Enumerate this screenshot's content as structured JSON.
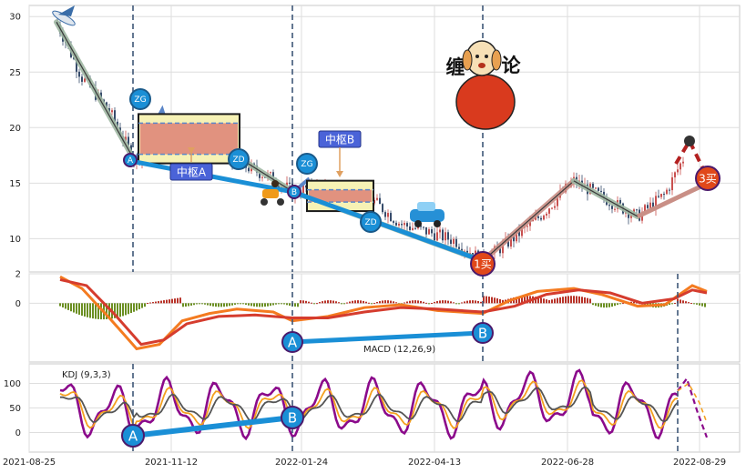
{
  "chart_data": [
    {
      "type": "candlestick",
      "panel": "price",
      "x_ticks": [
        "2021-08-25",
        "2021-11-12",
        "2022-01-24",
        "2022-04-13",
        "2022-06-28",
        "2022-08-29"
      ],
      "y_ticks": [
        "10",
        "15",
        "20",
        "25",
        "30"
      ],
      "ylim": [
        7,
        31
      ],
      "grid": true,
      "pivot_zones": [
        {
          "name": "中枢A",
          "top_label": "ZG",
          "bottom_label": "ZD",
          "zg": 20.4,
          "zd": 17.6
        },
        {
          "name": "中枢B",
          "top_label": "ZG",
          "bottom_label": "ZD",
          "zg": 14.4,
          "zd": 13.3
        }
      ],
      "points": [
        {
          "label": "A",
          "value": 17.0
        },
        {
          "label": "B",
          "value": 14.2
        },
        {
          "label": "1买",
          "value": 8.0
        },
        {
          "label": "3买",
          "value": 15.0
        }
      ],
      "title_text": "缠论"
    },
    {
      "type": "line",
      "panel": "macd",
      "label": "MACD (12,26,9)",
      "y_ticks": [
        "2",
        "0"
      ],
      "ylim": [
        -4,
        2
      ],
      "divergence_points": [
        {
          "label": "A"
        },
        {
          "label": "B"
        }
      ]
    },
    {
      "type": "line",
      "panel": "kdj",
      "label": "KDJ (9,3,3)",
      "y_ticks": [
        "100",
        "50",
        "0"
      ],
      "ylim": [
        -40,
        140
      ],
      "divergence_points": [
        {
          "label": "A"
        },
        {
          "label": "B"
        }
      ]
    }
  ],
  "colors": {
    "up": "#c9504f",
    "down": "#374c6b",
    "macd_dif": "#f47b20",
    "macd_dea": "#d53c2e",
    "kdj_k": "#f4a020",
    "kdj_d": "#555555",
    "kdj_j": "#8b0a8b",
    "divergence": "#1a8fd6",
    "circle_fill": "#1a8fd6",
    "circle_stroke": "#4b1a6b",
    "buy_fill": "#e0481a"
  }
}
